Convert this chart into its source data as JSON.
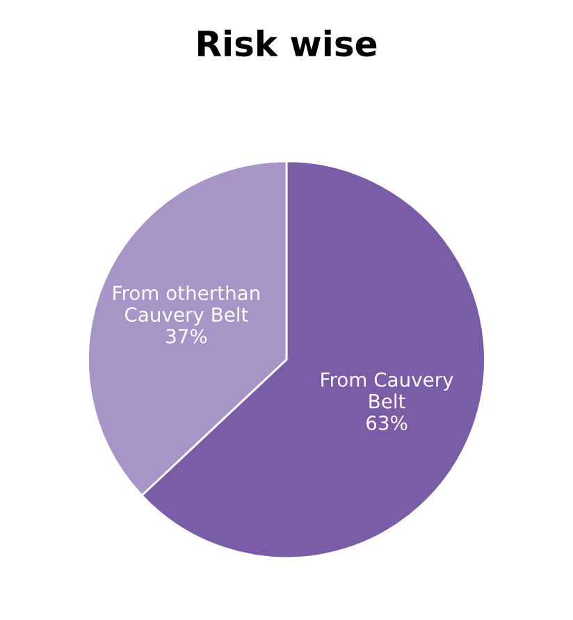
{
  "chart_data": {
    "type": "pie",
    "title": "Risk wise",
    "categories": [
      "From Cauvery Belt",
      "From otherthan Cauvery Belt"
    ],
    "values": [
      63,
      37
    ],
    "value_labels": [
      "63%",
      "37%"
    ],
    "colors": [
      "#7b5ca6",
      "#a895c8"
    ]
  }
}
